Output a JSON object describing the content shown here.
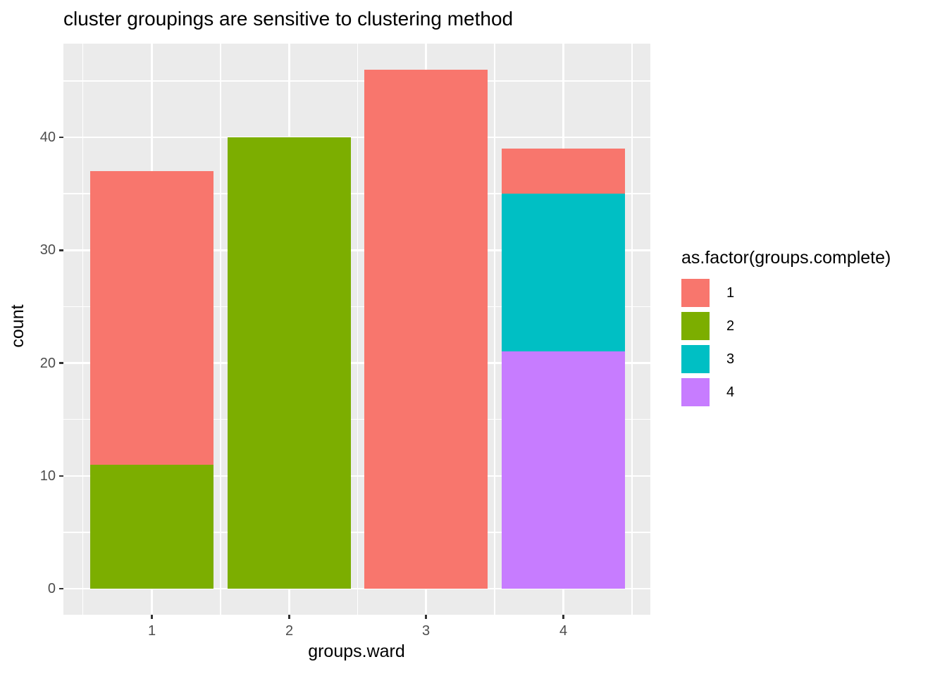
{
  "chart_data": {
    "type": "bar",
    "stacked": true,
    "title": "cluster groupings are sensitive to clustering method",
    "xlabel": "groups.ward",
    "ylabel": "count",
    "categories": [
      "1",
      "2",
      "3",
      "4"
    ],
    "series": [
      {
        "name": "1",
        "color": "#F8766D",
        "values": [
          26,
          0,
          46,
          4
        ]
      },
      {
        "name": "2",
        "color": "#7CAE00",
        "values": [
          11,
          40,
          0,
          0
        ]
      },
      {
        "name": "3",
        "color": "#00BFC4",
        "values": [
          0,
          0,
          0,
          14
        ]
      },
      {
        "name": "4",
        "color": "#C77CFF",
        "values": [
          0,
          0,
          0,
          21
        ]
      }
    ],
    "bars": [
      {
        "category": "1",
        "total": 37,
        "segments": [
          {
            "group": "2",
            "value": 11
          },
          {
            "group": "1",
            "value": 26
          }
        ]
      },
      {
        "category": "2",
        "total": 40,
        "segments": [
          {
            "group": "2",
            "value": 40
          }
        ]
      },
      {
        "category": "3",
        "total": 46,
        "segments": [
          {
            "group": "1",
            "value": 46
          }
        ]
      },
      {
        "category": "4",
        "total": 39,
        "segments": [
          {
            "group": "4",
            "value": 21
          },
          {
            "group": "3",
            "value": 14
          },
          {
            "group": "1",
            "value": 4
          }
        ]
      }
    ],
    "y_ticks": [
      0,
      10,
      20,
      30,
      40
    ],
    "y_minor_ticks": [
      5,
      15,
      25,
      35,
      45
    ],
    "ylim": [
      -2.3,
      48.3
    ],
    "grid": true,
    "legend_position": "right",
    "legend": {
      "title": "as.factor(groups.complete)",
      "entries": [
        {
          "label": "1",
          "color": "#F8766D"
        },
        {
          "label": "2",
          "color": "#7CAE00"
        },
        {
          "label": "3",
          "color": "#00BFC4"
        },
        {
          "label": "4",
          "color": "#C77CFF"
        }
      ]
    }
  },
  "style_colors": {
    "panel_background": "#EBEBEB",
    "gridline": "#FFFFFF",
    "tick_label": "#4D4D4D",
    "tick_mark": "#333333",
    "text": "#000000",
    "figure_background": "#FFFFFF"
  }
}
